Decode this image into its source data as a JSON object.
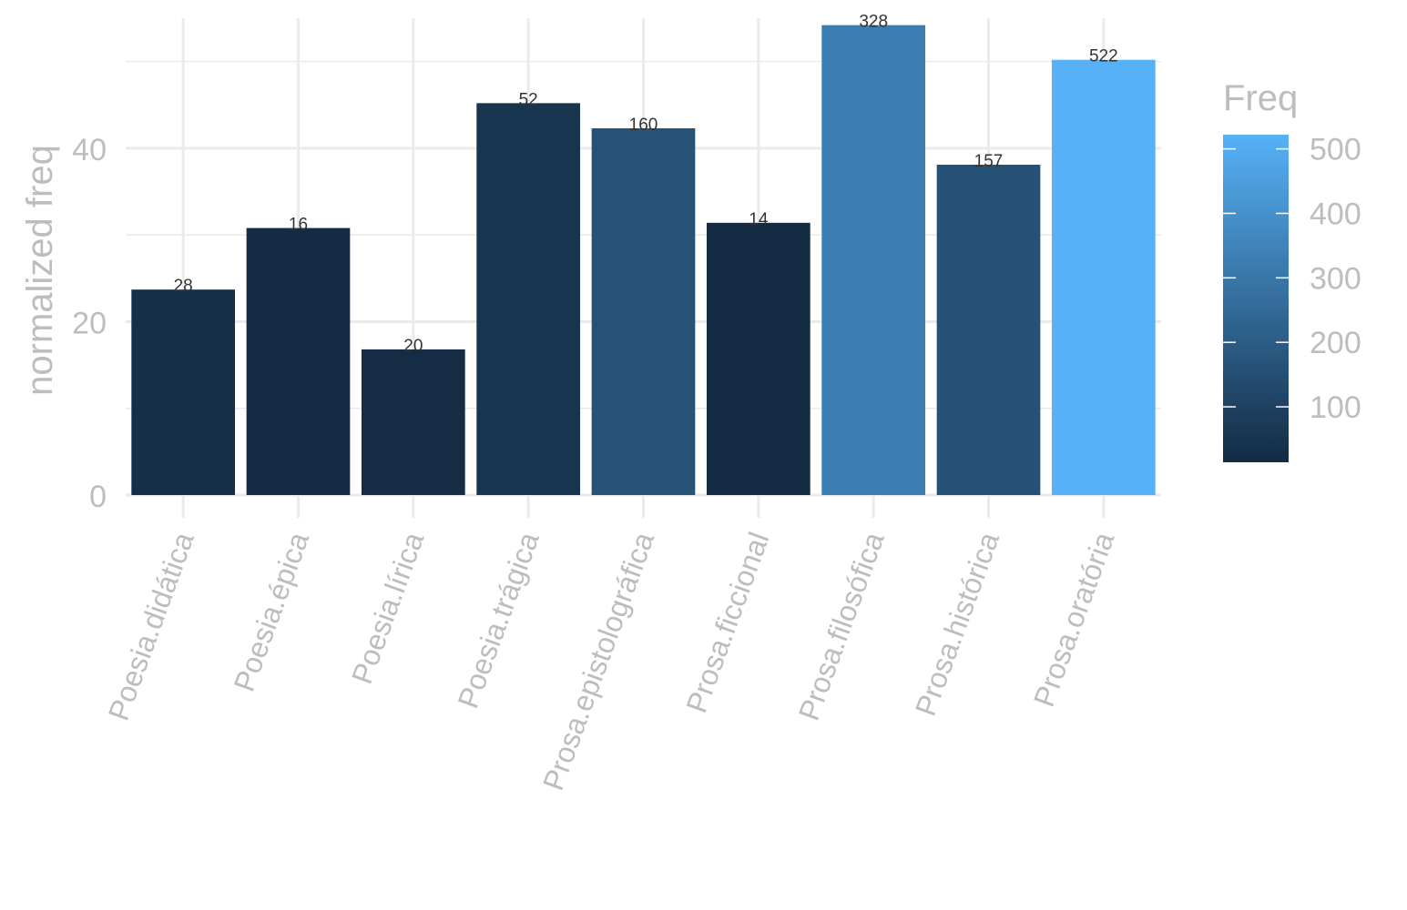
{
  "chart_data": {
    "type": "bar",
    "title": "",
    "xlabel": "",
    "ylabel": "normalized freq",
    "ylim": [
      0,
      55
    ],
    "yticks": [
      0,
      20,
      40
    ],
    "grid": true,
    "categories": [
      "Poesia.didática",
      "Poesia.épica",
      "Poesia.lírica",
      "Poesia.trágica",
      "Prosa.epistolográfica",
      "Prosa.ficcional",
      "Prosa.filosófica",
      "Prosa.histórica",
      "Prosa.oratória"
    ],
    "values": [
      23.7,
      30.8,
      16.8,
      45.2,
      42.3,
      31.4,
      54.2,
      38.1,
      50.2
    ],
    "labels": [
      "28",
      "16",
      "20",
      "52",
      "160",
      "14",
      "328",
      "157",
      "522"
    ],
    "fill_freq": [
      28,
      16,
      20,
      52,
      160,
      14,
      328,
      157,
      522
    ],
    "legend": {
      "title": "Freq",
      "position": "right",
      "range": [
        14,
        522
      ],
      "ticks": [
        100,
        200,
        300,
        400,
        500
      ],
      "low_color": "#132b43",
      "high_color": "#56b1f7"
    }
  }
}
